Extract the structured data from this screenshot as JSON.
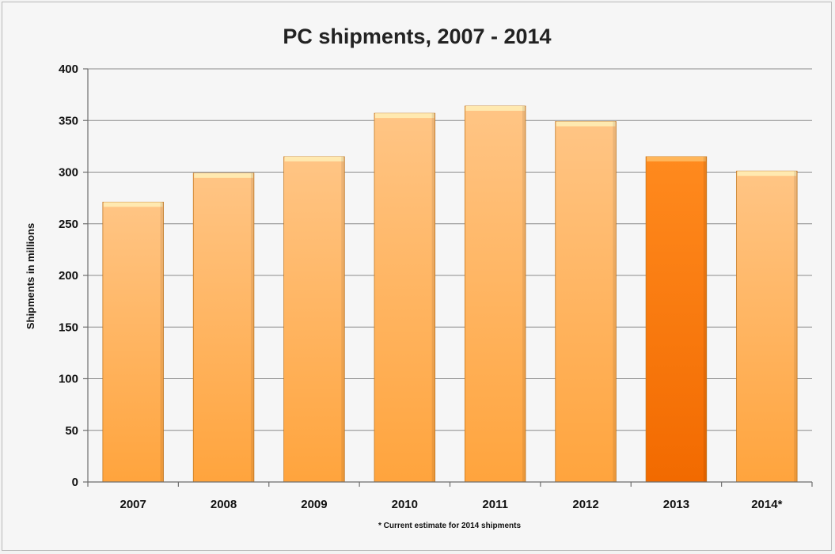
{
  "chart_data": {
    "type": "bar",
    "title": "PC shipments, 2007 - 2014",
    "ylabel": "Shipments in millions",
    "xlabel": "",
    "categories": [
      "2007",
      "2008",
      "2009",
      "2010",
      "2011",
      "2012",
      "2013",
      "2014*"
    ],
    "values": [
      271,
      299,
      315,
      357,
      364,
      349,
      315,
      301
    ],
    "ylim": [
      0,
      400
    ],
    "yticks": [
      "0",
      "50",
      "100",
      "150",
      "200",
      "250",
      "300",
      "350",
      "400"
    ],
    "grid": true,
    "legend": "none",
    "footnote": "* Current estimate for 2014 shipments",
    "highlight_category": "2013",
    "colors": {
      "bar_top": "#ffc585",
      "bar_bottom": "#ffa43d",
      "bar_cap": "#ffe9b0",
      "highlight_top": "#ff8a1e",
      "highlight_bottom": "#f26a00",
      "highlight_cap": "#ffb65a",
      "bar_edge": "#c67a22"
    }
  }
}
